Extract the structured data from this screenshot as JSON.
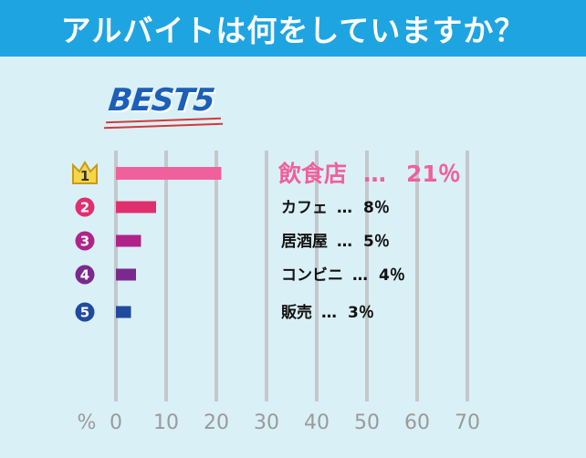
{
  "title": "アルバイトは何をしていますか？",
  "badge": "BEST5",
  "chart_data": {
    "type": "bar",
    "orientation": "horizontal",
    "unit_label": "%",
    "xlim": [
      0,
      70
    ],
    "ticks": [
      0,
      10,
      20,
      30,
      40,
      50,
      60,
      70
    ],
    "grid": true,
    "categories": [
      "飲食店",
      "カフェ",
      "居酒屋",
      "コンビニ",
      "販売"
    ],
    "ranks": [
      "1",
      "2",
      "3",
      "4",
      "5"
    ],
    "values": [
      21,
      8,
      5,
      4,
      3
    ],
    "value_labels": [
      "21％",
      "8％",
      "5％",
      "4％",
      "3％"
    ],
    "separator": "…",
    "colors": [
      "#f0609c",
      "#e02f6e",
      "#b0248a",
      "#7a2a8e",
      "#1f4a9e"
    ]
  }
}
